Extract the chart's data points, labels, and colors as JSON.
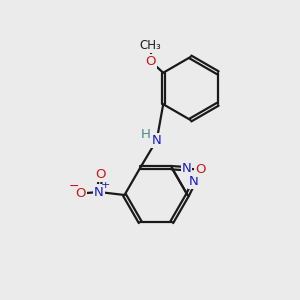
{
  "bg": "#ebebeb",
  "bond_color": "#1a1a1a",
  "bw": 1.6,
  "dbo": 0.055,
  "atom_colors": {
    "N": "#1a1acc",
    "O": "#cc1a1a",
    "H": "#4a8a8a",
    "C": "#1a1a1a"
  },
  "fs": 9.5,
  "fs_small": 8.0
}
